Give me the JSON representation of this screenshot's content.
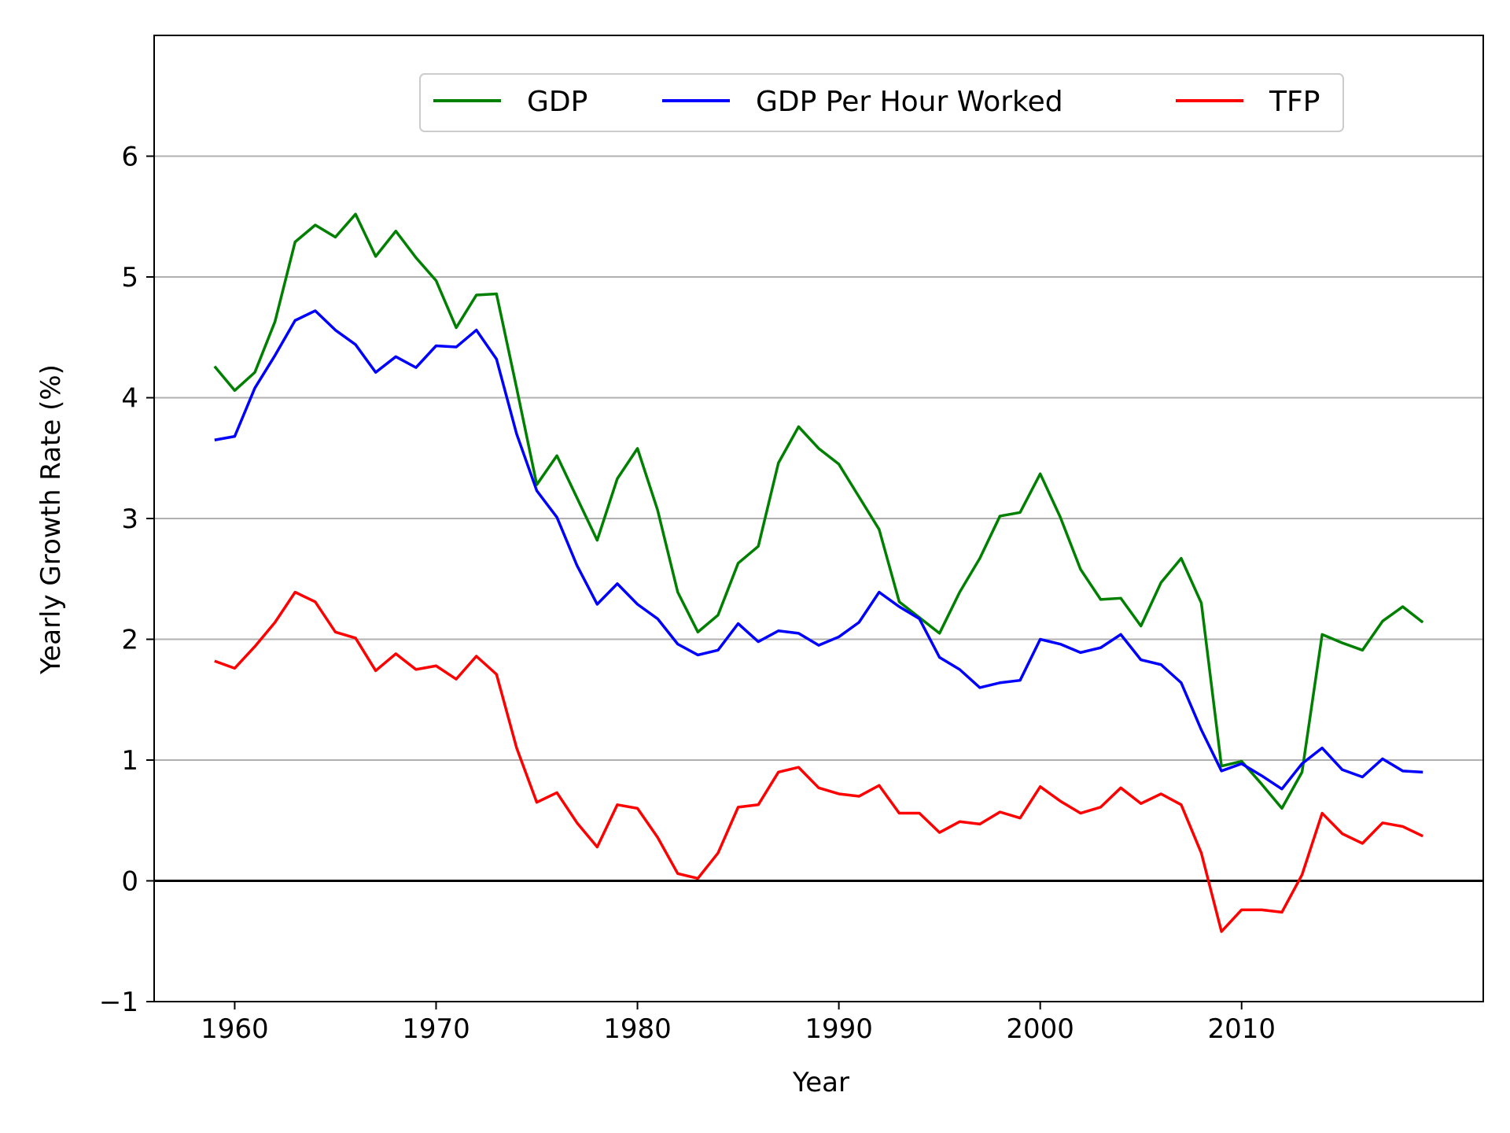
{
  "chart_data": {
    "type": "line",
    "title": "",
    "xlabel": "Year",
    "ylabel": "Yearly Growth Rate (%)",
    "xlim": [
      1956,
      2022
    ],
    "ylim": [
      -1,
      7
    ],
    "xticks": [
      1960,
      1970,
      1980,
      1990,
      2000,
      2010
    ],
    "xtick_labels": [
      "1960",
      "1970",
      "1980",
      "1990",
      "2000",
      "2010"
    ],
    "yticks": [
      -1,
      0,
      1,
      2,
      3,
      4,
      5,
      6
    ],
    "ytick_labels": [
      "−1",
      "0",
      "1",
      "2",
      "3",
      "4",
      "5",
      "6"
    ],
    "grid": "horizontal",
    "zero_line": 0,
    "legend_position": "top-center",
    "x": [
      1959,
      1960,
      1961,
      1962,
      1963,
      1964,
      1965,
      1966,
      1967,
      1968,
      1969,
      1970,
      1971,
      1972,
      1973,
      1974,
      1975,
      1976,
      1977,
      1978,
      1979,
      1980,
      1981,
      1982,
      1983,
      1984,
      1985,
      1986,
      1987,
      1988,
      1989,
      1990,
      1991,
      1992,
      1993,
      1994,
      1995,
      1996,
      1997,
      1998,
      1999,
      2000,
      2001,
      2002,
      2003,
      2004,
      2005,
      2006,
      2007,
      2008,
      2009,
      2010,
      2011,
      2012,
      2013,
      2014,
      2015,
      2016,
      2017,
      2018,
      2019
    ],
    "series": [
      {
        "name": "GDP",
        "color": "#008000",
        "values": [
          4.26,
          4.06,
          4.21,
          4.63,
          5.29,
          5.43,
          5.33,
          5.52,
          5.17,
          5.38,
          5.16,
          4.97,
          4.58,
          4.85,
          4.86,
          4.08,
          3.28,
          3.52,
          3.17,
          2.82,
          3.33,
          3.58,
          3.07,
          2.39,
          2.06,
          2.2,
          2.63,
          2.77,
          3.46,
          3.76,
          3.58,
          3.45,
          3.18,
          2.91,
          2.31,
          2.18,
          2.05,
          2.39,
          2.67,
          3.02,
          3.05,
          3.37,
          3.01,
          2.58,
          2.33,
          2.34,
          2.11,
          2.47,
          2.67,
          2.3,
          0.95,
          0.99,
          0.8,
          0.6,
          0.9,
          2.04,
          1.97,
          1.91,
          2.15,
          2.27,
          2.14
        ]
      },
      {
        "name": "GDP Per Hour Worked",
        "color": "#0000ff",
        "values": [
          3.65,
          3.68,
          4.08,
          4.35,
          4.64,
          4.72,
          4.56,
          4.44,
          4.21,
          4.34,
          4.25,
          4.43,
          4.42,
          4.56,
          4.32,
          3.7,
          3.23,
          3.01,
          2.61,
          2.29,
          2.46,
          2.29,
          2.17,
          1.96,
          1.87,
          1.91,
          2.13,
          1.98,
          2.07,
          2.05,
          1.95,
          2.02,
          2.14,
          2.39,
          2.27,
          2.17,
          1.85,
          1.75,
          1.6,
          1.64,
          1.66,
          2.0,
          1.96,
          1.89,
          1.93,
          2.04,
          1.83,
          1.79,
          1.64,
          1.25,
          0.91,
          0.97,
          0.87,
          0.76,
          0.97,
          1.1,
          0.92,
          0.86,
          1.01,
          0.91,
          0.9
        ]
      },
      {
        "name": "TFP",
        "color": "#ff0000",
        "values": [
          1.82,
          1.76,
          1.94,
          2.14,
          2.39,
          2.31,
          2.06,
          2.01,
          1.74,
          1.88,
          1.75,
          1.78,
          1.67,
          1.86,
          1.71,
          1.1,
          0.65,
          0.73,
          0.48,
          0.28,
          0.63,
          0.6,
          0.36,
          0.06,
          0.02,
          0.23,
          0.61,
          0.63,
          0.9,
          0.94,
          0.77,
          0.72,
          0.7,
          0.79,
          0.56,
          0.56,
          0.4,
          0.49,
          0.47,
          0.57,
          0.52,
          0.78,
          0.66,
          0.56,
          0.61,
          0.77,
          0.64,
          0.72,
          0.63,
          0.23,
          -0.42,
          -0.24,
          -0.24,
          -0.26,
          0.05,
          0.56,
          0.39,
          0.31,
          0.48,
          0.45,
          0.37
        ]
      }
    ]
  }
}
